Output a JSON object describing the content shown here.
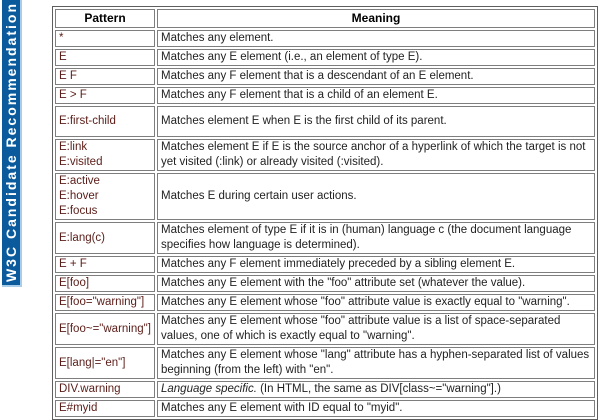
{
  "banner": {
    "label": "W3C Candidate Recommendation",
    "bg_color": "#0a5a9c",
    "edge_color": "#a9cce8",
    "text_color": "#ffffff"
  },
  "table": {
    "headers": [
      "Pattern",
      "Meaning"
    ],
    "pattern_text_color": "#5a1d18",
    "meaning_text_color": "#222222",
    "border_color": "#7e7e7e",
    "rows": [
      {
        "pattern": [
          "*"
        ],
        "meaning": "Matches any element."
      },
      {
        "pattern": [
          "E"
        ],
        "meaning": "Matches any E element (i.e., an element of type E)."
      },
      {
        "pattern": [
          "E F"
        ],
        "meaning": "Matches any F element that is a descendant of an E element."
      },
      {
        "pattern": [
          "E > F"
        ],
        "meaning": "Matches any F element that is a child of an element E."
      },
      {
        "pattern": [
          "E:first-child"
        ],
        "meaning": "Matches element E when E is the first child of its parent."
      },
      {
        "pattern": [
          "E:link",
          "E:visited"
        ],
        "meaning": "Matches element E if E is the source anchor of a hyperlink of which the target is not yet visited (:link) or already visited (:visited)."
      },
      {
        "pattern": [
          "E:active",
          "E:hover",
          "E:focus"
        ],
        "meaning": "Matches E during certain user actions."
      },
      {
        "pattern": [
          "E:lang(c)"
        ],
        "meaning": "Matches element of type E if it is in (human) language c (the document language specifies how language is determined)."
      },
      {
        "pattern": [
          "E + F"
        ],
        "meaning": "Matches any F element immediately preceded by a sibling element E."
      },
      {
        "pattern": [
          "E[foo]"
        ],
        "meaning": "Matches any E element with the \"foo\" attribute set (whatever the value)."
      },
      {
        "pattern": [
          "E[foo=\"warning\"]"
        ],
        "meaning": "Matches any E element whose \"foo\" attribute value is exactly equal to \"warning\"."
      },
      {
        "pattern": [
          "E[foo~=\"warning\"]"
        ],
        "meaning": "Matches any E element whose \"foo\" attribute value is a list of space-separated values, one of which is exactly equal to \"warning\"."
      },
      {
        "pattern": [
          "E[lang|=\"en\"]"
        ],
        "meaning": "Matches any E element whose \"lang\" attribute has a hyphen-separated list of values beginning (from the left) with \"en\"."
      },
      {
        "pattern": [
          "DIV.warning"
        ],
        "meaning_italic": "Language specific.",
        "meaning": " (In HTML, the same as DIV[class~=\"warning\"].)"
      },
      {
        "pattern": [
          "E#myid"
        ],
        "meaning": "Matches any E element with ID equal to \"myid\"."
      }
    ]
  }
}
